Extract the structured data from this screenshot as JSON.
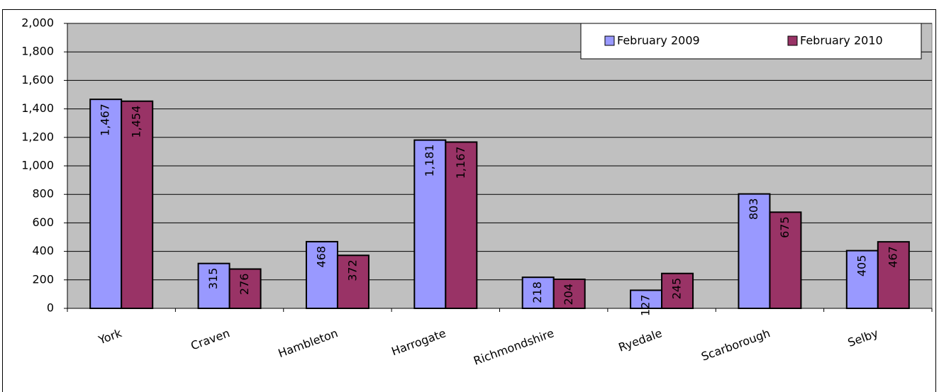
{
  "chart_data": {
    "type": "bar",
    "categories": [
      "York",
      "Craven",
      "Hambleton",
      "Harrogate",
      "Richmondshire",
      "Ryedale",
      "Scarborough",
      "Selby"
    ],
    "series": [
      {
        "name": "February 2009",
        "color": "#9999ff",
        "values": [
          1467,
          315,
          468,
          1181,
          218,
          127,
          803,
          405
        ],
        "value_labels": [
          "1,467",
          "315",
          "468",
          "1,181",
          "218",
          "127",
          "803",
          "405"
        ]
      },
      {
        "name": "February 2010",
        "color": "#993366",
        "values": [
          1454,
          276,
          372,
          1167,
          204,
          245,
          675,
          467
        ],
        "value_labels": [
          "1,454",
          "276",
          "372",
          "1,167",
          "204",
          "245",
          "675",
          "467"
        ]
      }
    ],
    "ylim": [
      0,
      2000
    ],
    "yticks": [
      0,
      200,
      400,
      600,
      800,
      {
        "value": 1000,
        "label": "1,000"
      },
      {
        "value": 1200,
        "label": "1,200"
      },
      {
        "value": 1400,
        "label": "1,400"
      },
      {
        "value": 1600,
        "label": "1,600"
      },
      {
        "value": 1800,
        "label": "1,800"
      },
      {
        "value": 2000,
        "label": "2,000"
      }
    ],
    "grid": true,
    "legend": "top-right",
    "plot_background": "#c0c0c0"
  }
}
